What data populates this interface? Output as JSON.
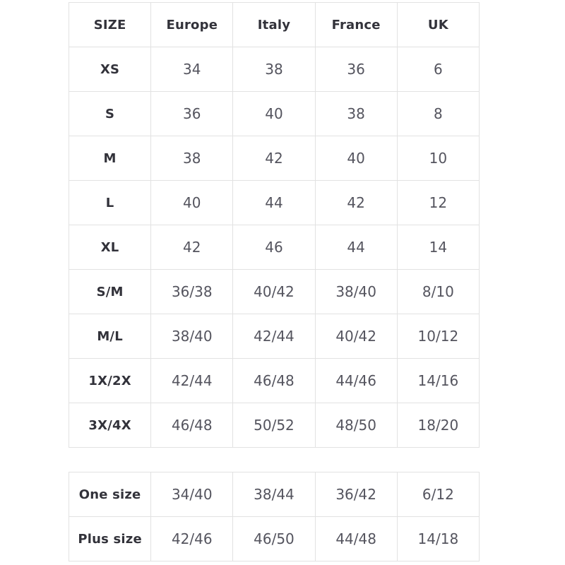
{
  "theme": {
    "background_color": "#ffffff",
    "border_color": "#e2e2e2",
    "header_text_color": "#32323a",
    "cell_text_color": "#54545e"
  },
  "chart_data": [
    {
      "type": "table",
      "columns": [
        "SIZE",
        "Europe",
        "Italy",
        "France",
        "UK"
      ],
      "rows": [
        [
          "XS",
          "34",
          "38",
          "36",
          "6"
        ],
        [
          "S",
          "36",
          "40",
          "38",
          "8"
        ],
        [
          "M",
          "38",
          "42",
          "40",
          "10"
        ],
        [
          "L",
          "40",
          "44",
          "42",
          "12"
        ],
        [
          "XL",
          "42",
          "46",
          "44",
          "14"
        ],
        [
          "S/M",
          "36/38",
          "40/42",
          "38/40",
          "8/10"
        ],
        [
          "M/L",
          "38/40",
          "42/44",
          "40/42",
          "10/12"
        ],
        [
          "1X/2X",
          "42/44",
          "46/48",
          "44/46",
          "14/16"
        ],
        [
          "3X/4X",
          "46/48",
          "50/52",
          "48/50",
          "18/20"
        ]
      ],
      "layout": {
        "grid": true,
        "text_align": "center"
      }
    },
    {
      "type": "table",
      "rows": [
        [
          "One size",
          "34/40",
          "38/44",
          "36/42",
          "6/12"
        ],
        [
          "Plus size",
          "42/46",
          "46/50",
          "44/48",
          "14/18"
        ]
      ],
      "layout": {
        "grid": true,
        "text_align": "center"
      }
    }
  ]
}
